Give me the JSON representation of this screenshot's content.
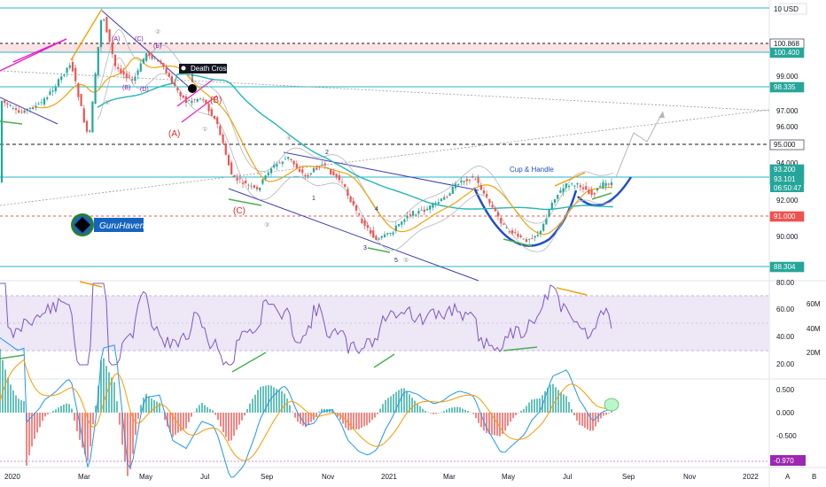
{
  "chart_data": {
    "type": "candlestick",
    "currency": "USD",
    "x_ticks": [
      "2020",
      "Mar",
      "May",
      "Jul",
      "Sep",
      "Nov",
      "2021",
      "Mar",
      "May",
      "Jul",
      "Sep",
      "Nov",
      "2022"
    ],
    "price_panel": {
      "y_ticks": [
        "99.000",
        "97.000",
        "96.000",
        "94.000",
        "92.000",
        "90.000"
      ],
      "price_levels": [
        {
          "value": "100.868",
          "color": "#131722"
        },
        {
          "value": "100.400",
          "color": "#26a69a"
        },
        {
          "value": "98.335",
          "color": "#26a69a"
        },
        {
          "value": "95.000",
          "color": "#131722"
        },
        {
          "value": "93.200",
          "color": "#26a69a"
        },
        {
          "value": "93.101",
          "color": "#26a69a"
        },
        {
          "value": "91.000",
          "color": "#ef5350"
        },
        {
          "value": "88.304",
          "color": "#26a69a"
        }
      ],
      "last_price": "93.101",
      "countdown": "06:50:47",
      "top_label": "10",
      "annotations": [
        "Death Cross",
        "Cup & Handle",
        "(A)",
        "(B)",
        "(C)",
        "(A)",
        "(B)",
        "(C)",
        "(D)",
        "(E)",
        "2",
        "1",
        "3",
        "4",
        "5",
        "②",
        "①",
        "④",
        "③",
        "⑤",
        "①"
      ],
      "watermark": "GuruHaven",
      "series": [
        {
          "name": "price",
          "color": "#131722"
        },
        {
          "name": "ma-50",
          "color": "#f0a30a"
        },
        {
          "name": "ma-200",
          "color": "#26b5b5"
        }
      ]
    },
    "rsi_panel": {
      "y_ticks": [
        "80.00",
        "60.00",
        "40.00",
        "20.00"
      ],
      "volume_ticks": [
        "60M",
        "40M",
        "20M"
      ]
    },
    "macd_panel": {
      "y_ticks": [
        "0.500",
        "0.000",
        "-0.500"
      ],
      "last_value": "-0.970"
    },
    "bottom_buttons": [
      "A",
      "B"
    ]
  }
}
